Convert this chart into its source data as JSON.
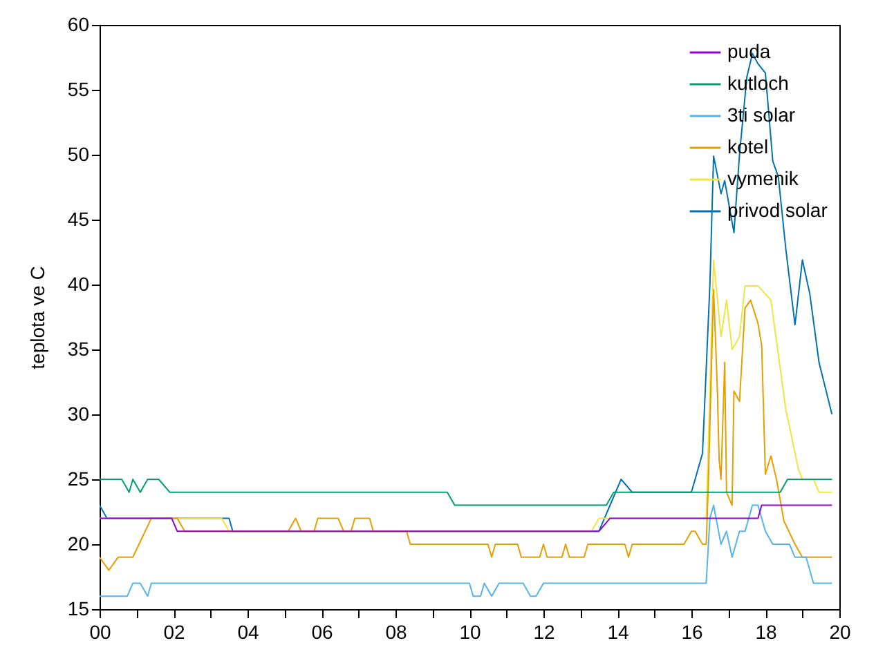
{
  "chart_data": {
    "type": "line",
    "ylabel": "teplota ve C",
    "xlim": [
      0,
      20
    ],
    "ylim": [
      15,
      60
    ],
    "xticks": [
      {
        "value": 0,
        "label": "00"
      },
      {
        "value": 1,
        "label": null
      },
      {
        "value": 2,
        "label": "02"
      },
      {
        "value": 3,
        "label": null
      },
      {
        "value": 4,
        "label": "04"
      },
      {
        "value": 5,
        "label": null
      },
      {
        "value": 6,
        "label": "06"
      },
      {
        "value": 7,
        "label": null
      },
      {
        "value": 8,
        "label": "08"
      },
      {
        "value": 9,
        "label": null
      },
      {
        "value": 10,
        "label": "10"
      },
      {
        "value": 11,
        "label": null
      },
      {
        "value": 12,
        "label": "12"
      },
      {
        "value": 13,
        "label": null
      },
      {
        "value": 14,
        "label": "14"
      },
      {
        "value": 15,
        "label": null
      },
      {
        "value": 16,
        "label": "16"
      },
      {
        "value": 17,
        "label": null
      },
      {
        "value": 18,
        "label": "18"
      },
      {
        "value": 19,
        "label": null
      },
      {
        "value": 20,
        "label": "20"
      }
    ],
    "yticks": [
      15,
      20,
      25,
      30,
      35,
      40,
      45,
      50,
      55,
      60
    ],
    "legend": "top right",
    "grid": false,
    "series": [
      {
        "name": "puda",
        "color": "#9400d3",
        "x": [
          0,
          1.95,
          2.1,
          13.5,
          13.8,
          17.8,
          17.9,
          19.8
        ],
        "values": [
          22,
          22,
          21,
          21,
          22,
          22,
          23,
          23
        ]
      },
      {
        "name": "kutloch",
        "color": "#009e73",
        "x": [
          0,
          0.6,
          0.8,
          0.9,
          1.1,
          1.3,
          1.6,
          1.9,
          9.4,
          9.6,
          13.7,
          13.9,
          18.4,
          18.6,
          19.8
        ],
        "values": [
          25,
          25,
          24,
          25,
          24,
          25,
          25,
          24,
          24,
          23,
          23,
          24,
          24,
          25,
          25
        ]
      },
      {
        "name": "3ti solar",
        "color": "#56b4e9",
        "x": [
          0,
          0.75,
          0.9,
          1.1,
          1.3,
          1.4,
          10.0,
          10.1,
          10.3,
          10.4,
          10.6,
          10.8,
          11.45,
          11.65,
          11.8,
          12.0,
          16.4,
          16.5,
          16.6,
          16.8,
          16.95,
          17.1,
          17.3,
          17.45,
          17.65,
          17.8,
          18.0,
          18.2,
          18.65,
          18.8,
          19.1,
          19.3,
          19.8
        ],
        "values": [
          16,
          16,
          17,
          17,
          16,
          17,
          17,
          16,
          16,
          17,
          16,
          17,
          17,
          16,
          16,
          17,
          17,
          22,
          23,
          20,
          21,
          19,
          21,
          21,
          23,
          23,
          21,
          20,
          20,
          19,
          19,
          17,
          17
        ]
      },
      {
        "name": "kotel",
        "color": "#e69f00",
        "x": [
          0,
          0.25,
          0.5,
          0.9,
          1.4,
          2.1,
          2.3,
          5.1,
          5.3,
          5.45,
          5.8,
          5.9,
          6.45,
          6.6,
          6.8,
          6.9,
          7.3,
          7.4,
          8.3,
          8.4,
          10.5,
          10.6,
          10.7,
          11.3,
          11.4,
          11.9,
          12.0,
          12.1,
          12.5,
          12.6,
          12.7,
          13.1,
          13.2,
          14.2,
          14.3,
          14.4,
          15.8,
          16.0,
          16.1,
          16.3,
          16.4,
          16.45,
          16.6,
          16.7,
          16.75,
          16.8,
          16.9,
          16.95,
          17.1,
          17.15,
          17.3,
          17.45,
          17.6,
          17.8,
          17.9,
          18.0,
          18.15,
          18.3,
          18.5,
          18.8,
          19.0,
          19.8
        ],
        "values": [
          19,
          18,
          19,
          19,
          22,
          22,
          21,
          21,
          22,
          21,
          21,
          22,
          22,
          21,
          21,
          22,
          22,
          21,
          21,
          20,
          20,
          19,
          20,
          20,
          19,
          19,
          20,
          19,
          19,
          20,
          19,
          19,
          20,
          20,
          19,
          20,
          20,
          21,
          21,
          20,
          20,
          24,
          39.6,
          32,
          26.5,
          25,
          34,
          24,
          23,
          31.8,
          31,
          38.2,
          38.8,
          37,
          35.3,
          25.4,
          26.8,
          25,
          21.8,
          20,
          19,
          19
        ]
      },
      {
        "name": "vymenik",
        "color": "#f0e442",
        "x": [
          0,
          3.3,
          3.5,
          13.3,
          13.5,
          16.4,
          16.6,
          16.8,
          16.95,
          17.1,
          17.3,
          17.45,
          17.8,
          18.15,
          18.55,
          18.9,
          19.0,
          19.3,
          19.45,
          19.8
        ],
        "values": [
          22,
          22,
          21,
          21,
          22,
          22,
          41.9,
          36,
          38.8,
          35,
          36,
          39.9,
          39.9,
          38.8,
          30.4,
          25.7,
          25,
          25,
          24,
          24
        ]
      },
      {
        "name": "privod solar",
        "color": "#0072b2",
        "x": [
          0,
          0.2,
          3.5,
          3.6,
          13.5,
          14.1,
          14.4,
          16.0,
          16.3,
          16.5,
          16.6,
          16.8,
          16.9,
          17.15,
          17.3,
          17.5,
          17.65,
          17.8,
          18.0,
          18.2,
          18.35,
          18.55,
          18.8,
          19.0,
          19.2,
          19.45,
          19.8
        ],
        "values": [
          23,
          22,
          22,
          21,
          21,
          25,
          24,
          24,
          27,
          40,
          49.9,
          47,
          48,
          44,
          50,
          56,
          57.8,
          57,
          56.3,
          49.5,
          48.3,
          42.8,
          36.9,
          41.9,
          39.3,
          34,
          30
        ]
      }
    ]
  }
}
